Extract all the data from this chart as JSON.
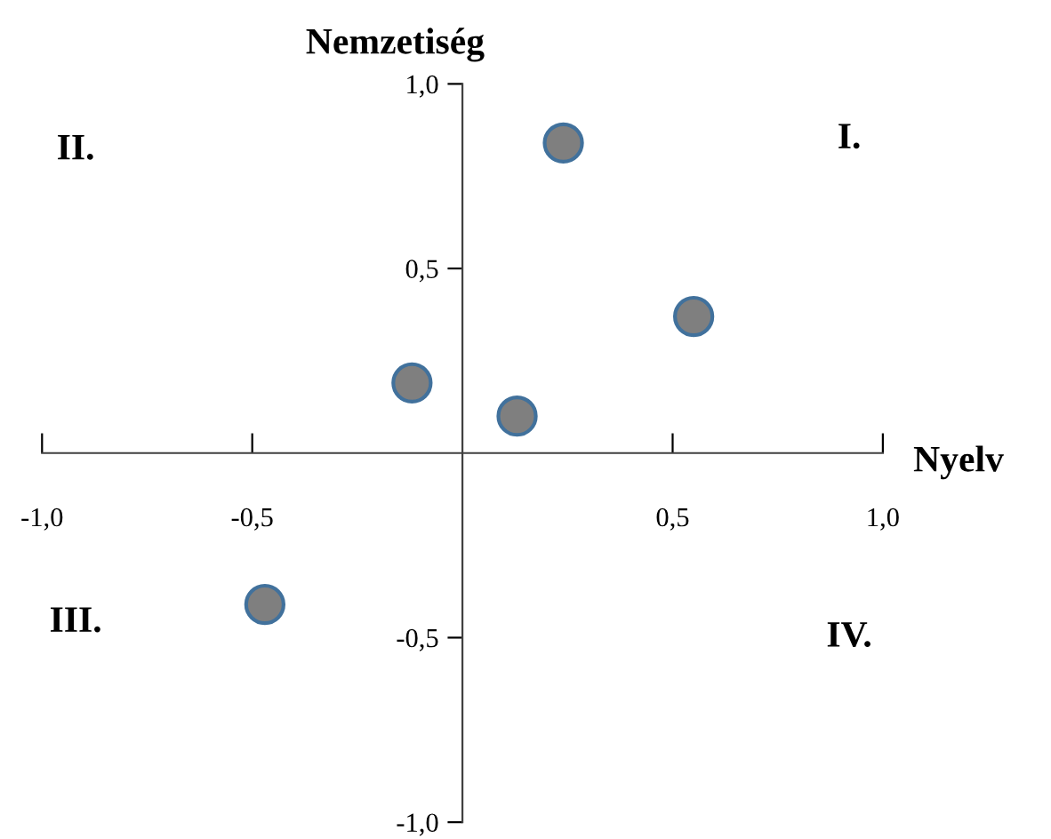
{
  "chart_data": {
    "type": "scatter",
    "xlabel": "Nyelv",
    "ylabel": "Nemzetiség",
    "x": [
      0.24,
      0.55,
      -0.12,
      0.13,
      -0.47
    ],
    "series": [
      {
        "color": "#7f7f7f",
        "values": [
          0.84,
          0.37,
          0.19,
          0.1,
          -0.41
        ]
      }
    ],
    "xlim": [
      -1.0,
      1.0
    ],
    "ylim": [
      -1.0,
      1.0
    ],
    "xticks": [
      {
        "value": -1.0,
        "label": "-1,0"
      },
      {
        "value": -0.5,
        "label": "-0,5"
      },
      {
        "value": 0.5,
        "label": "0,5"
      },
      {
        "value": 1.0,
        "label": "1,0"
      }
    ],
    "yticks": [
      {
        "value": -1.0,
        "label": "-1,0"
      },
      {
        "value": -0.5,
        "label": "-0,5"
      },
      {
        "value": 0.5,
        "label": "0,5"
      },
      {
        "value": 1.0,
        "label": "1,0"
      }
    ],
    "annotations": [
      "I.",
      "II.",
      "III.",
      "IV."
    ],
    "marker": "circle",
    "grid": false,
    "legend": false
  }
}
